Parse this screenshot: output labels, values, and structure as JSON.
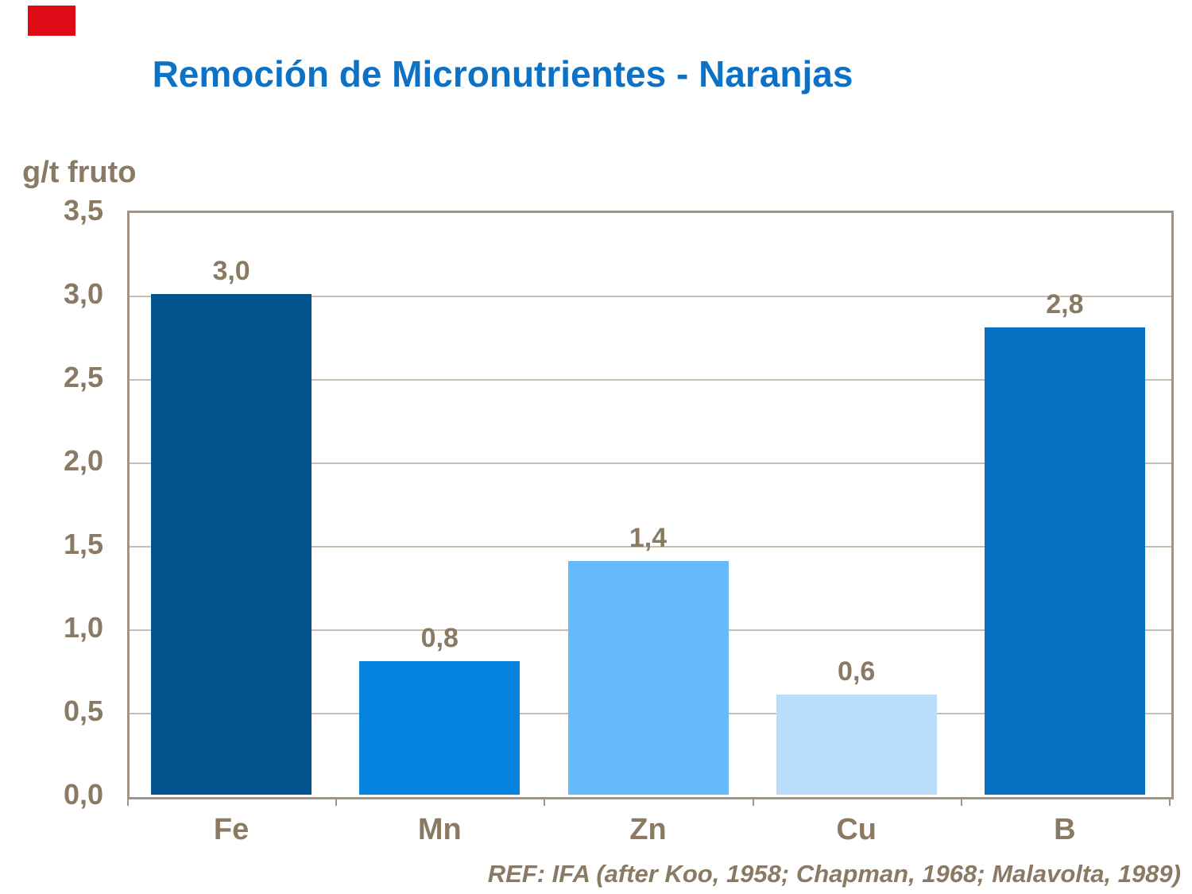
{
  "title": {
    "text": "Remoción de Micronutrientes - Naranjas",
    "color": "#0D72C6"
  },
  "brand_block_color": "#DD0B15",
  "text_color": "#8A7963",
  "frame_color": "#A39382",
  "grid_color": "#C9BDAF",
  "y_axis_title": "g/t fruto",
  "ref_text": "REF: IFA (after Koo, 1958; Chapman, 1968; Malavolta, 1989)",
  "chart_data": {
    "type": "bar",
    "categories": [
      "Fe",
      "Mn",
      "Zn",
      "Cu",
      "B"
    ],
    "values": [
      3.0,
      0.8,
      1.4,
      0.6,
      2.8
    ],
    "value_labels": [
      "3,0",
      "0,8",
      "1,4",
      "0,6",
      "2,8"
    ],
    "bar_colors": [
      "#02538E",
      "#0683DF",
      "#64BAFB",
      "#B9DDFB",
      "#0671C2"
    ],
    "title": "Remoción de Micronutrientes - Naranjas",
    "xlabel": "",
    "ylabel": "g/t fruto",
    "ylim": [
      0,
      3.5
    ],
    "ytick_step": 0.5,
    "ytick_labels": [
      "0,0",
      "0,5",
      "1,0",
      "1,5",
      "2,0",
      "2,5",
      "3,0",
      "3,5"
    ],
    "grid": true,
    "legend_position": "none",
    "annotations": "value labels above each bar"
  }
}
